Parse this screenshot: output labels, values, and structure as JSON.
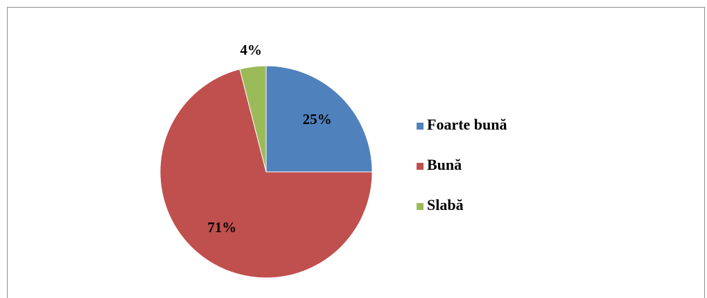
{
  "chart_data": {
    "type": "pie",
    "categories": [
      "Foarte bună",
      "Bună",
      "Slabă"
    ],
    "values": [
      25,
      71,
      4
    ],
    "value_labels": [
      "25%",
      "71%",
      "4%"
    ],
    "colors": [
      "#4f81bd",
      "#c0504d",
      "#9bbb59"
    ],
    "legend": "right"
  }
}
